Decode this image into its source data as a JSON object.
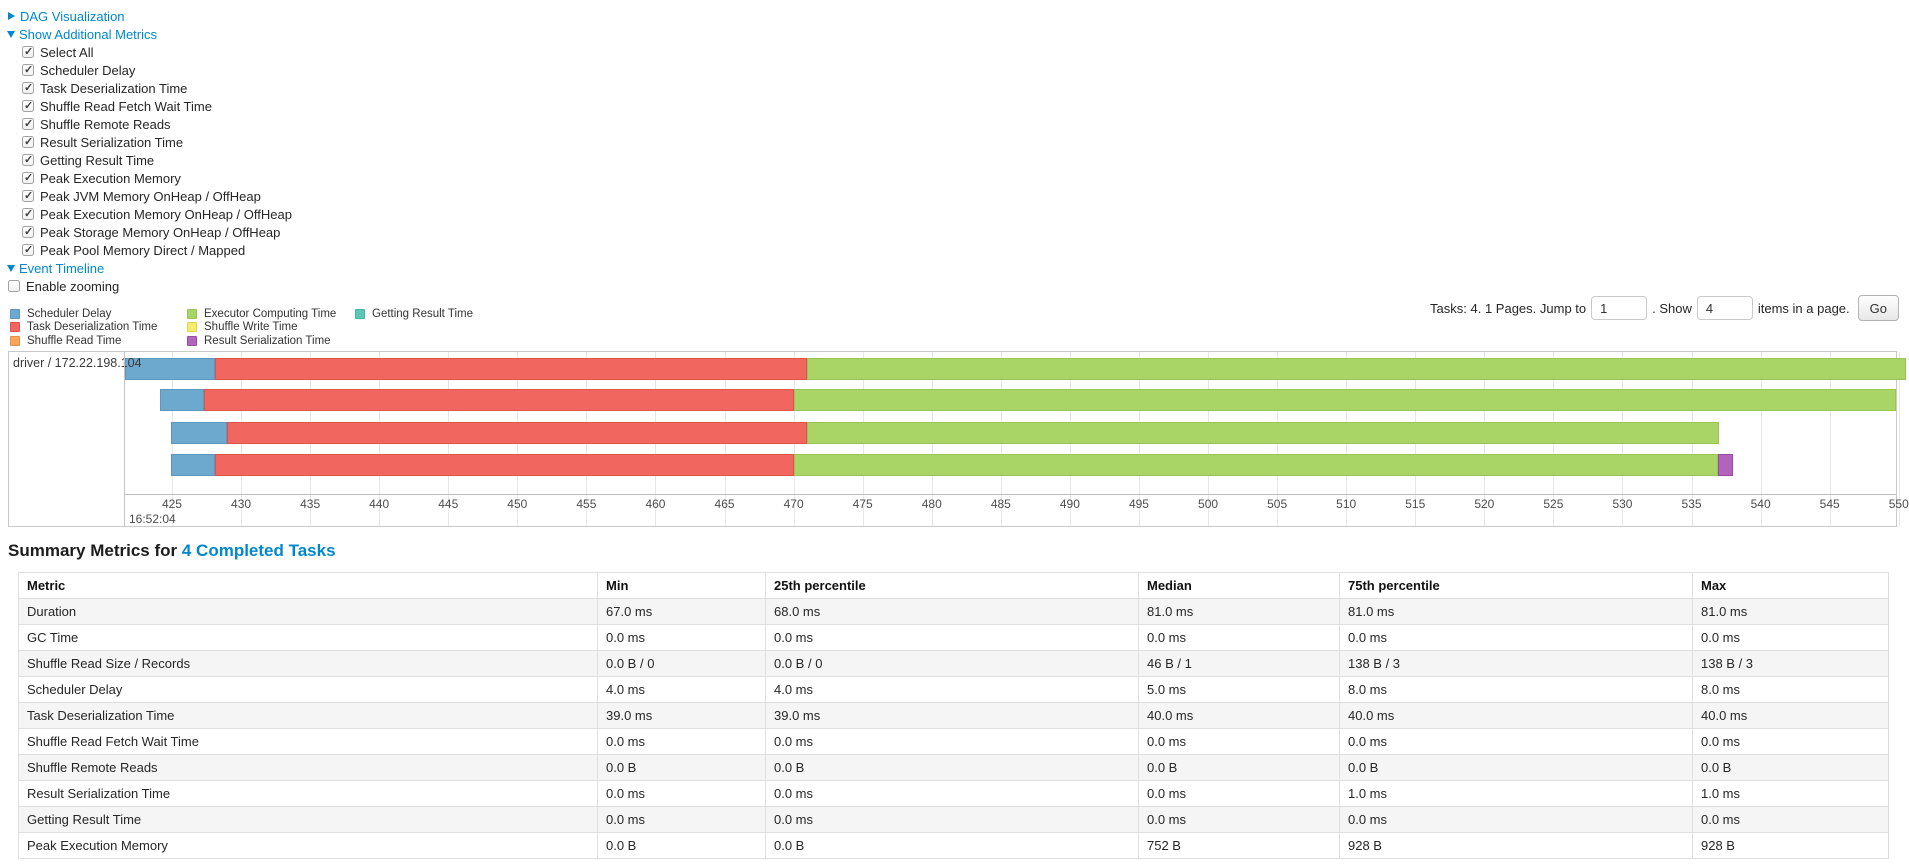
{
  "controls": {
    "dag_visualization": {
      "label": "DAG Visualization",
      "collapsed": true
    },
    "show_additional_metrics": {
      "label": "Show Additional Metrics",
      "collapsed": false
    },
    "metric_checkboxes": [
      {
        "label": "Select All",
        "checked": true
      },
      {
        "label": "Scheduler Delay",
        "checked": true
      },
      {
        "label": "Task Deserialization Time",
        "checked": true
      },
      {
        "label": "Shuffle Read Fetch Wait Time",
        "checked": true
      },
      {
        "label": "Shuffle Remote Reads",
        "checked": true
      },
      {
        "label": "Result Serialization Time",
        "checked": true
      },
      {
        "label": "Getting Result Time",
        "checked": true
      },
      {
        "label": "Peak Execution Memory",
        "checked": true
      },
      {
        "label": "Peak JVM Memory OnHeap / OffHeap",
        "checked": true
      },
      {
        "label": "Peak Execution Memory OnHeap / OffHeap",
        "checked": true
      },
      {
        "label": "Peak Storage Memory OnHeap / OffHeap",
        "checked": true
      },
      {
        "label": "Peak Pool Memory Direct / Mapped",
        "checked": true
      }
    ],
    "event_timeline": {
      "label": "Event Timeline",
      "collapsed": false
    },
    "enable_zooming": {
      "label": "Enable zooming",
      "checked": false
    }
  },
  "palette": {
    "scheduler-delay": {
      "fill": "#6DA9CE",
      "border": "#5D97BC"
    },
    "task-deserialization": {
      "fill": "#F1665F",
      "border": "#DD544D"
    },
    "shuffle-read": {
      "fill": "#F9A65A",
      "border": "#E39148"
    },
    "executor-computing": {
      "fill": "#A9D566",
      "border": "#97C452"
    },
    "shuffle-write": {
      "fill": "#F5EC6C",
      "border": "#DFD355"
    },
    "result-serialization": {
      "fill": "#B264BA",
      "border": "#9A4CA4"
    },
    "getting-result": {
      "fill": "#5BC7B5",
      "border": "#49B3A1"
    }
  },
  "legend": {
    "columns": [
      [
        {
          "key": "scheduler-delay",
          "label": "Scheduler Delay"
        },
        {
          "key": "task-deserialization",
          "label": "Task Deserialization Time"
        },
        {
          "key": "shuffle-read",
          "label": "Shuffle Read Time"
        }
      ],
      [
        {
          "key": "executor-computing",
          "label": "Executor Computing Time"
        },
        {
          "key": "shuffle-write",
          "label": "Shuffle Write Time"
        },
        {
          "key": "result-serialization",
          "label": "Result Serialization Time"
        }
      ],
      [
        {
          "key": "getting-result",
          "label": "Getting Result Time"
        }
      ]
    ]
  },
  "pagination": {
    "tasks_text": "Tasks: 4. 1 Pages. Jump to",
    "jump_value": "1",
    "show_text": ". Show",
    "show_value": "4",
    "items_text": "items in a page.",
    "go_label": "Go"
  },
  "chart_data": {
    "type": "timeline",
    "title": "Event Timeline",
    "group_label": "driver / 172.22.198.104",
    "x_unit": "milliseconds within second 16:52:04",
    "x_window": [
      421.6,
      549.8
    ],
    "x_ticks": [
      425,
      430,
      435,
      440,
      445,
      450,
      455,
      460,
      465,
      470,
      475,
      480,
      485,
      490,
      495,
      500,
      505,
      510,
      515,
      520,
      525,
      530,
      535,
      540,
      545,
      550
    ],
    "x_major_label": "16:52:04",
    "tasks": [
      {
        "start": 421.6,
        "segments": [
          {
            "key": "scheduler-delay",
            "end": 428.1
          },
          {
            "key": "task-deserialization",
            "end": 471.0
          },
          {
            "key": "executor-computing",
            "end": 550.5
          }
        ]
      },
      {
        "start": 424.1,
        "segments": [
          {
            "key": "scheduler-delay",
            "end": 427.3
          },
          {
            "key": "task-deserialization",
            "end": 470.0
          },
          {
            "key": "executor-computing",
            "end": 549.8
          }
        ]
      },
      {
        "start": 424.9,
        "segments": [
          {
            "key": "scheduler-delay",
            "end": 429.0
          },
          {
            "key": "task-deserialization",
            "end": 471.0
          },
          {
            "key": "executor-computing",
            "end": 537.0
          }
        ]
      },
      {
        "start": 424.9,
        "segments": [
          {
            "key": "scheduler-delay",
            "end": 428.1
          },
          {
            "key": "task-deserialization",
            "end": 470.0
          },
          {
            "key": "executor-computing",
            "end": 536.9
          },
          {
            "key": "result-serialization",
            "end": 538.0
          }
        ]
      }
    ]
  },
  "summary": {
    "title_prefix": "Summary Metrics for",
    "title_link": "4 Completed Tasks",
    "headers": [
      "Metric",
      "Min",
      "25th percentile",
      "Median",
      "75th percentile",
      "Max"
    ],
    "rows": [
      [
        "Duration",
        "67.0 ms",
        "68.0 ms",
        "81.0 ms",
        "81.0 ms",
        "81.0 ms"
      ],
      [
        "GC Time",
        "0.0 ms",
        "0.0 ms",
        "0.0 ms",
        "0.0 ms",
        "0.0 ms"
      ],
      [
        "Shuffle Read Size / Records",
        "0.0 B / 0",
        "0.0 B / 0",
        "46 B / 1",
        "138 B / 3",
        "138 B / 3"
      ],
      [
        "Scheduler Delay",
        "4.0 ms",
        "4.0 ms",
        "5.0 ms",
        "8.0 ms",
        "8.0 ms"
      ],
      [
        "Task Deserialization Time",
        "39.0 ms",
        "39.0 ms",
        "40.0 ms",
        "40.0 ms",
        "40.0 ms"
      ],
      [
        "Shuffle Read Fetch Wait Time",
        "0.0 ms",
        "0.0 ms",
        "0.0 ms",
        "0.0 ms",
        "0.0 ms"
      ],
      [
        "Shuffle Remote Reads",
        "0.0 B",
        "0.0 B",
        "0.0 B",
        "0.0 B",
        "0.0 B"
      ],
      [
        "Result Serialization Time",
        "0.0 ms",
        "0.0 ms",
        "0.0 ms",
        "1.0 ms",
        "1.0 ms"
      ],
      [
        "Getting Result Time",
        "0.0 ms",
        "0.0 ms",
        "0.0 ms",
        "0.0 ms",
        "0.0 ms"
      ],
      [
        "Peak Execution Memory",
        "0.0 B",
        "0.0 B",
        "752 B",
        "928 B",
        "928 B"
      ]
    ]
  }
}
